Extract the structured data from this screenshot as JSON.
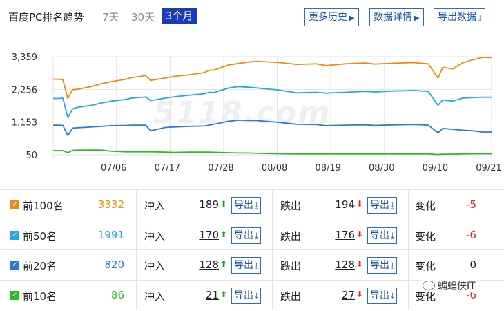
{
  "header": {
    "title": "百度PC排名趋势",
    "ranges": [
      "7天",
      "30天",
      "3个月"
    ],
    "active_range": "3个月",
    "buttons": {
      "history": "更多历史",
      "details": "数据详情",
      "export": "导出数据"
    }
  },
  "watermark": "5118.com",
  "chart_data": {
    "type": "line",
    "y_ticks": [
      "3,359",
      "2,256",
      "1,153",
      "50"
    ],
    "ylim": [
      50,
      3359
    ],
    "x_ticks": [
      "07/06",
      "07/17",
      "07/28",
      "08/08",
      "08/19",
      "08/30",
      "09/10",
      "09/21"
    ],
    "x_range": [
      "06/23",
      "09/21"
    ],
    "grid": true,
    "colors": {
      "top100": "#f18b0e",
      "top50": "#22a9e0",
      "top20": "#2a7bd8",
      "top10": "#29bd1f"
    },
    "x_index": [
      0,
      1,
      2,
      3,
      4,
      5,
      8,
      10,
      12,
      15,
      16,
      19,
      20,
      23,
      25,
      28,
      31,
      32,
      33,
      36,
      38,
      40,
      42,
      46,
      50,
      54,
      56,
      60,
      64,
      66,
      70,
      74,
      77,
      79,
      80,
      82,
      84,
      86,
      88,
      90
    ],
    "series": {
      "top100": [
        2600,
        2600,
        2580,
        1950,
        2250,
        2260,
        2360,
        2450,
        2520,
        2600,
        2650,
        2720,
        2560,
        2640,
        2700,
        2750,
        2820,
        2900,
        2910,
        3080,
        3130,
        3180,
        3200,
        3170,
        3100,
        3120,
        3060,
        3120,
        3150,
        3110,
        3140,
        3160,
        3120,
        2640,
        3000,
        2950,
        3150,
        3250,
        3332,
        3332
      ],
      "top50": [
        1950,
        1950,
        1960,
        1300,
        1600,
        1650,
        1720,
        1800,
        1860,
        1920,
        1960,
        2000,
        1880,
        1960,
        2010,
        2060,
        2110,
        2160,
        2150,
        2300,
        2350,
        2330,
        2300,
        2240,
        2140,
        2160,
        2130,
        2160,
        2190,
        2170,
        2200,
        2220,
        2190,
        1720,
        1900,
        1860,
        1960,
        1980,
        1991,
        1991
      ],
      "top20": [
        1050,
        1050,
        1040,
        700,
        950,
        960,
        990,
        1010,
        1030,
        1040,
        1050,
        1050,
        860,
        970,
        990,
        1010,
        1020,
        1050,
        1080,
        1180,
        1220,
        1210,
        1200,
        1150,
        1080,
        1070,
        1030,
        1050,
        1060,
        1040,
        1060,
        1070,
        1050,
        790,
        940,
        910,
        880,
        860,
        820,
        820
      ],
      "top10": [
        190,
        190,
        190,
        120,
        200,
        205,
        210,
        205,
        170,
        150,
        150,
        150,
        150,
        140,
        130,
        140,
        140,
        140,
        135,
        120,
        110,
        110,
        100,
        90,
        80,
        80,
        80,
        80,
        80,
        80,
        80,
        80,
        80,
        60,
        70,
        70,
        80,
        84,
        86,
        86
      ]
    }
  },
  "table": {
    "labels": {
      "in": "冲入",
      "out": "跌出",
      "change": "变化",
      "export": "导出"
    },
    "rows": [
      {
        "name": "前100名",
        "count": "3332",
        "count_color": "#f18b0e",
        "check_color": "#f18b0e",
        "in": "189",
        "out": "194",
        "change": "-5",
        "change_color": "#e02020"
      },
      {
        "name": "前50名",
        "count": "1991",
        "count_color": "#22a9e0",
        "check_color": "#22a9e0",
        "in": "170",
        "out": "176",
        "change": "-6",
        "change_color": "#e02020"
      },
      {
        "name": "前20名",
        "count": "820",
        "count_color": "#2a7bd8",
        "check_color": "#2a7bd8",
        "in": "128",
        "out": "128",
        "change": "0",
        "change_color": "#222222"
      },
      {
        "name": "前10名",
        "count": "86",
        "count_color": "#29bd1f",
        "check_color": "#29bd1f",
        "in": "21",
        "out": "27",
        "change": "-6",
        "change_color": "#e02020"
      }
    ]
  },
  "brand": "蝙蝠侠IT"
}
